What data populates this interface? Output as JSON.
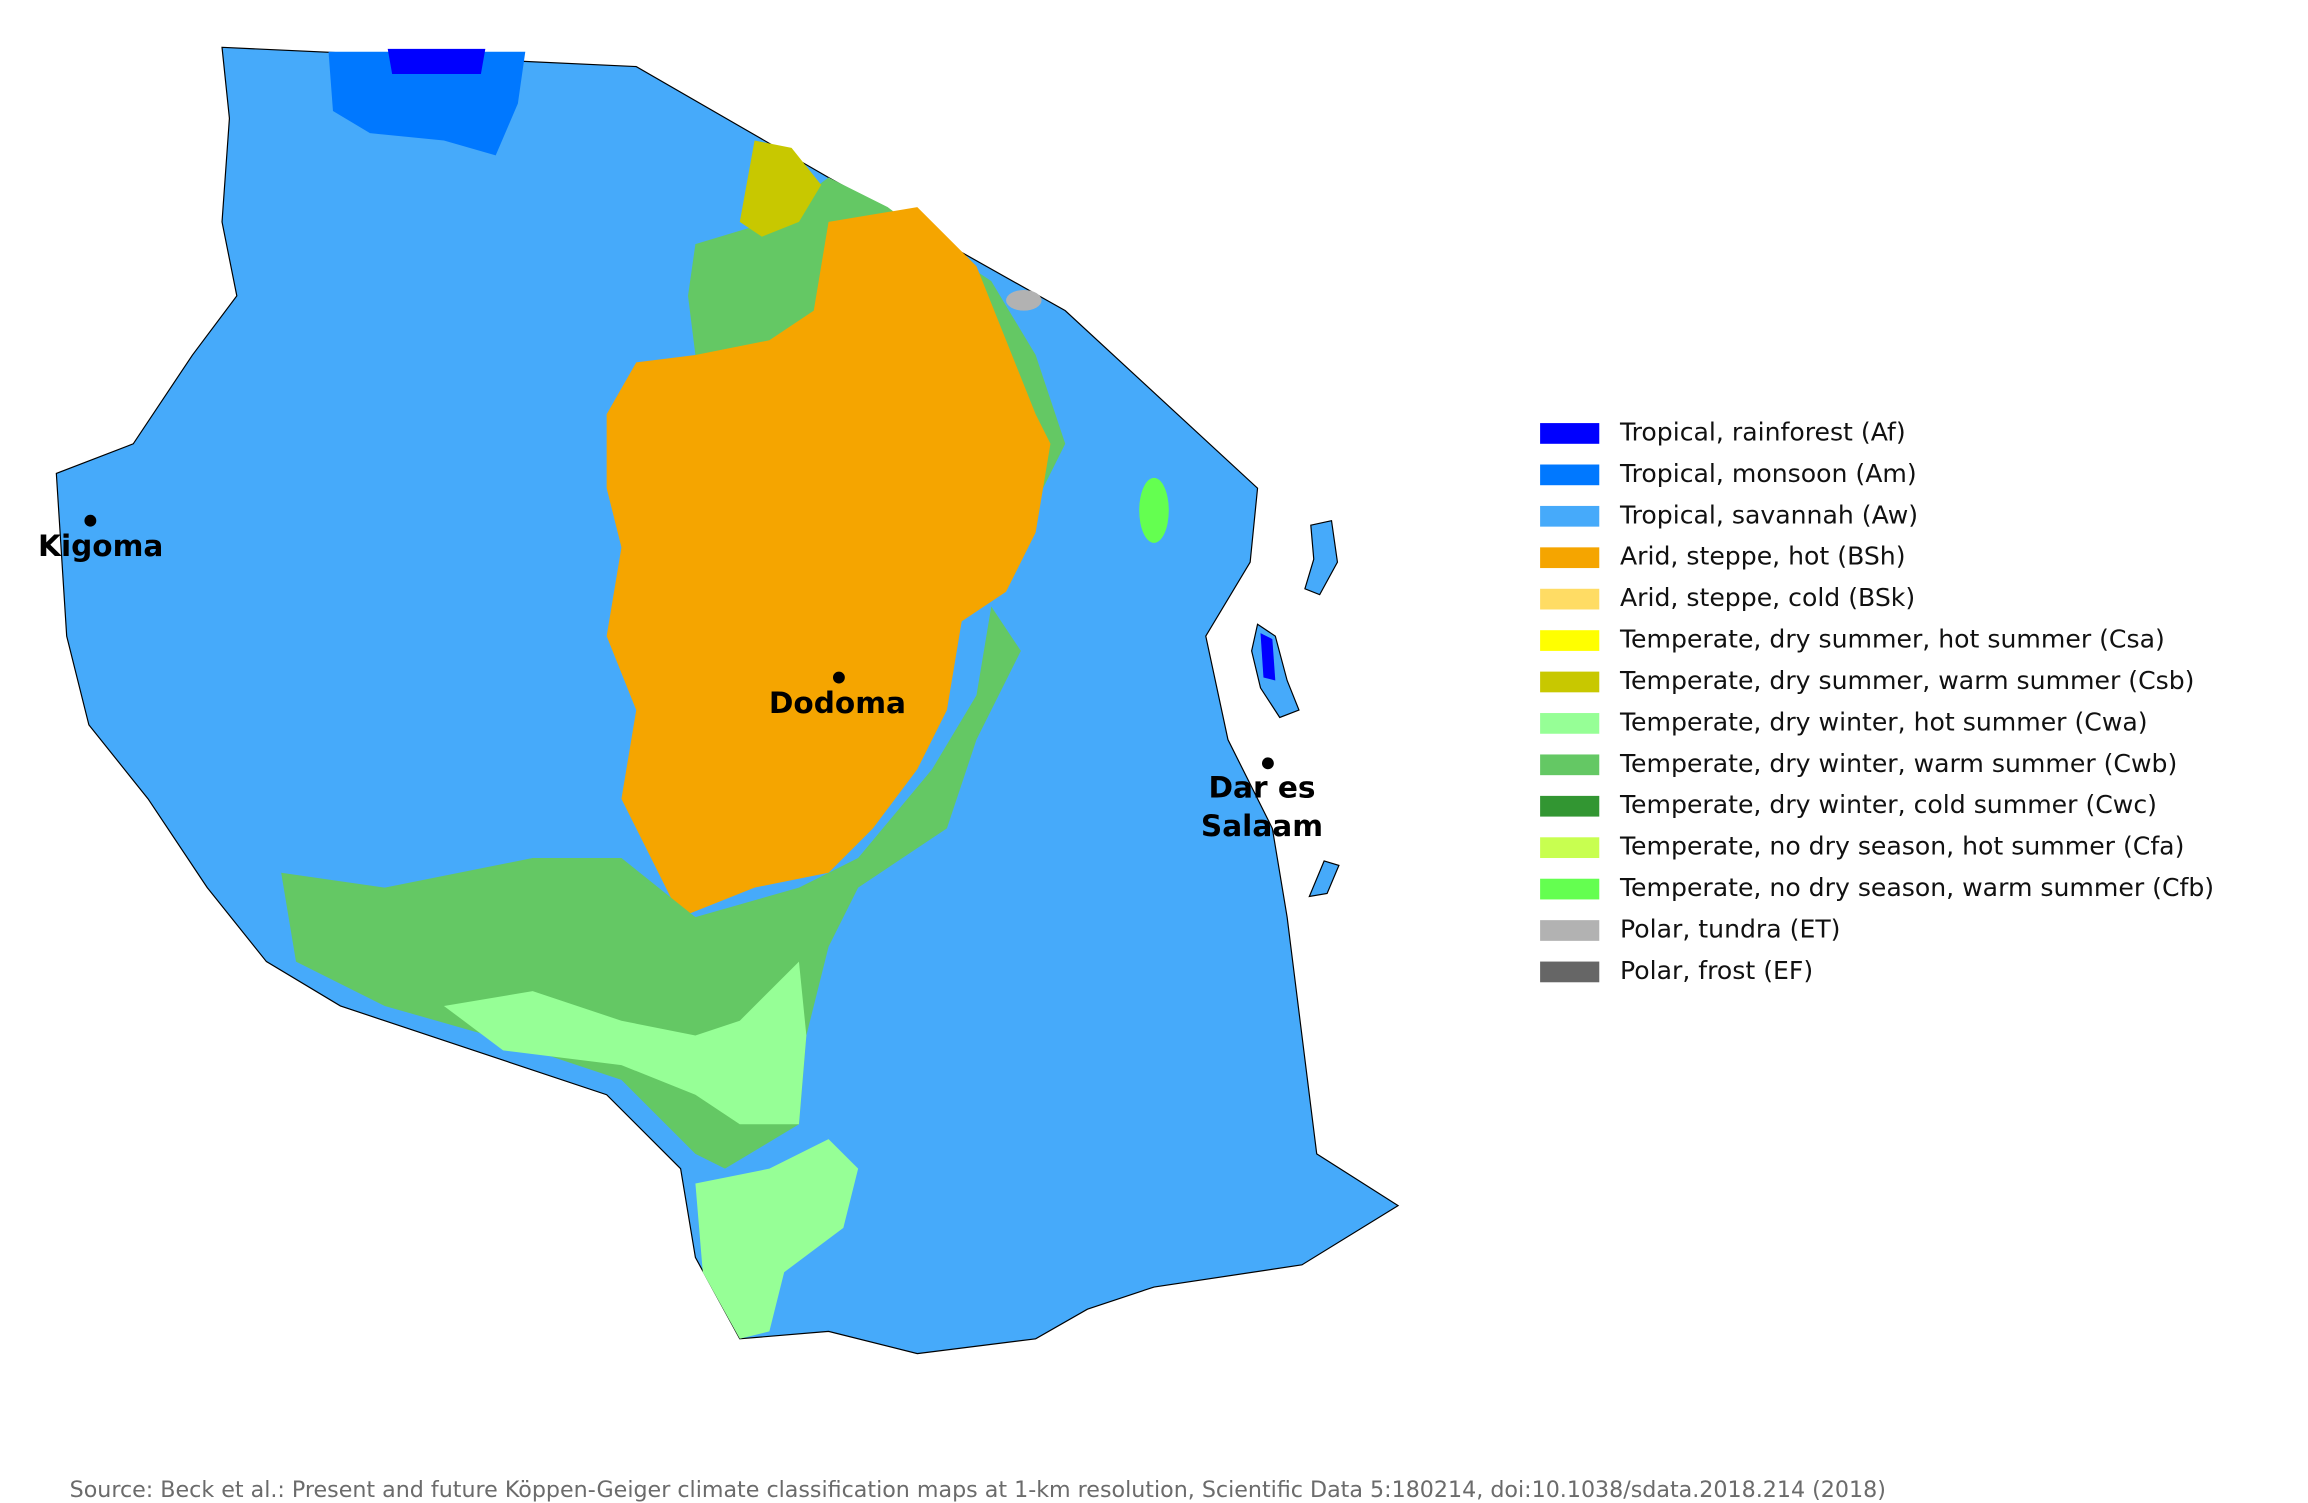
{
  "map": {
    "cities": [
      {
        "lines": [
          "Kigoma"
        ]
      },
      {
        "lines": [
          "Dodoma"
        ]
      },
      {
        "lines": [
          "Dar es",
          "Salaam"
        ]
      }
    ],
    "legend": [
      {
        "label": "Tropical, rainforest (Af)",
        "color": "#0000ff"
      },
      {
        "label": "Tropical, monsoon (Am)",
        "color": "#0078ff"
      },
      {
        "label": "Tropical, savannah (Aw)",
        "color": "#46aafa"
      },
      {
        "label": "Arid, steppe, hot (BSh)",
        "color": "#f5a500"
      },
      {
        "label": "Arid, steppe, cold (BSk)",
        "color": "#ffdc64"
      },
      {
        "label": "Temperate, dry summer, hot summer (Csa)",
        "color": "#ffff00"
      },
      {
        "label": "Temperate, dry summer, warm summer (Csb)",
        "color": "#c8c800"
      },
      {
        "label": "Temperate, dry winter, hot summer (Cwa)",
        "color": "#96ff96"
      },
      {
        "label": "Temperate, dry winter, warm summer (Cwb)",
        "color": "#64c864"
      },
      {
        "label": "Temperate, dry winter, cold summer (Cwc)",
        "color": "#329632"
      },
      {
        "label": "Temperate, no dry season, hot summer (Cfa)",
        "color": "#c8ff50"
      },
      {
        "label": "Temperate, no dry season, warm summer (Cfb)",
        "color": "#64ff50"
      },
      {
        "label": "Polar, tundra (ET)",
        "color": "#b2b2b2"
      },
      {
        "label": "Polar, frost (EF)",
        "color": "#666666"
      }
    ],
    "source": "Source: Beck et al.: Present and future Köppen-Geiger climate classification maps at 1-km resolution, Scientific Data 5:180214, doi:10.1038/sdata.2018.214 (2018)"
  }
}
